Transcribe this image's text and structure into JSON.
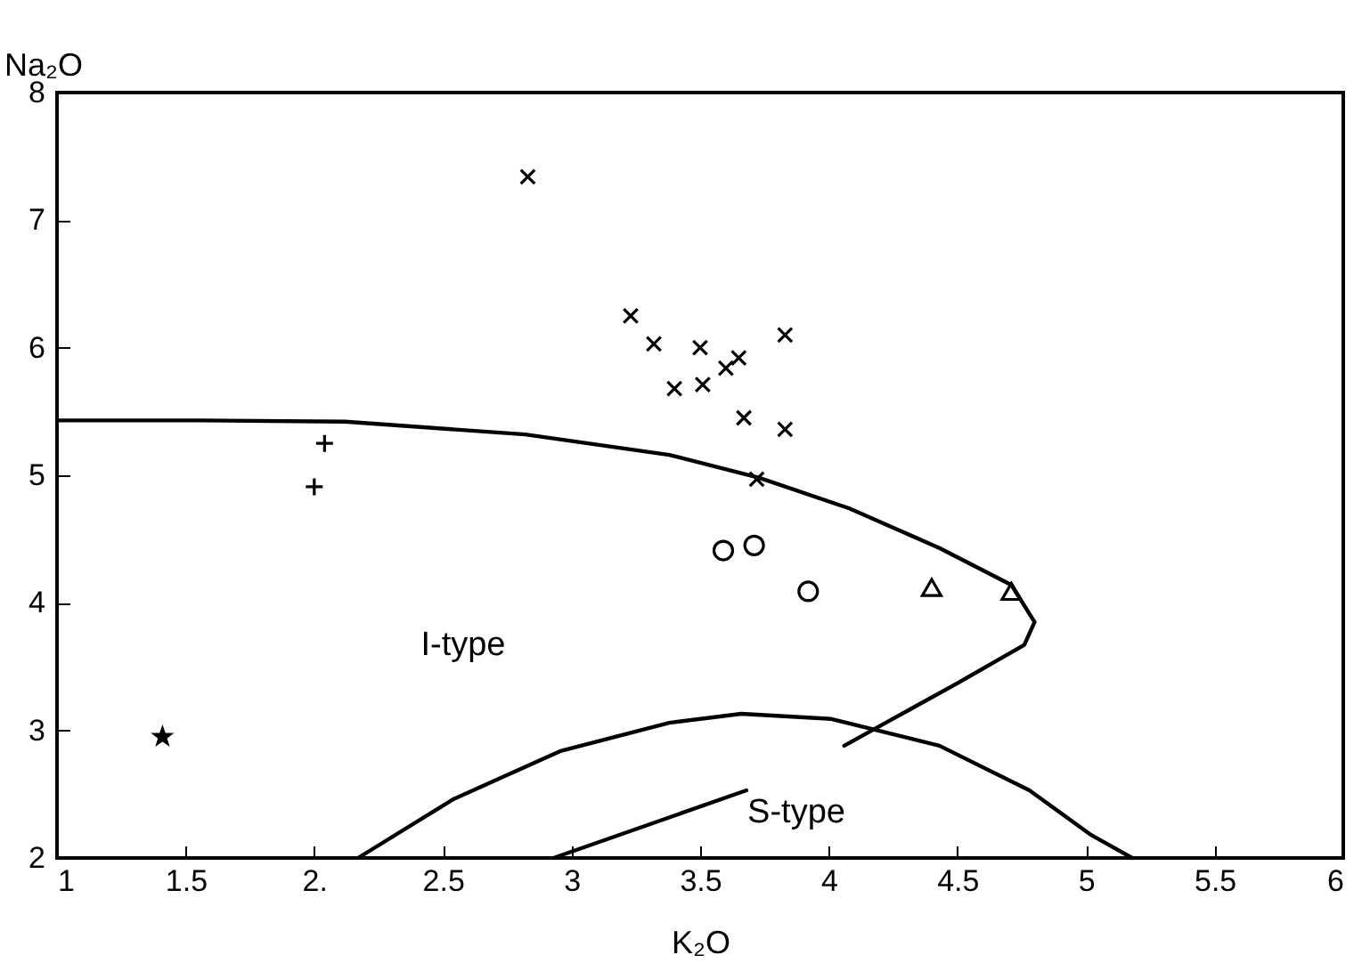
{
  "chart_data": {
    "type": "scatter",
    "xlabel": "K₂O",
    "ylabel": "Na₂O",
    "xlim": [
      1,
      6
    ],
    "xticks": [
      1,
      1.5,
      {
        "value": 2,
        "label": "2."
      },
      2.5,
      3,
      3.5,
      4,
      4.5,
      5,
      5.5,
      6
    ],
    "ylim": [
      2,
      8
    ],
    "yticks": [
      2,
      3,
      4,
      5,
      6,
      7,
      8
    ],
    "grid": false,
    "annotations": [
      "I-type",
      "S-type"
    ],
    "series": [
      {
        "type": "line",
        "color": "#000000",
        "marker": "none",
        "x": [
          1.0,
          1.56,
          2.12,
          2.82,
          3.38,
          3.73,
          4.08,
          4.43,
          4.71,
          4.8,
          4.76,
          4.5,
          4.06
        ],
        "values": [
          5.43,
          5.43,
          5.42,
          5.32,
          5.16,
          4.98,
          4.74,
          4.43,
          4.14,
          3.85,
          3.67,
          3.37,
          2.88
        ]
      },
      {
        "type": "line",
        "color": "#000000",
        "marker": "none",
        "x": [
          3.68,
          2.93
        ],
        "values": [
          2.53,
          2.0
        ]
      },
      {
        "type": "line",
        "color": "#000000",
        "marker": "none",
        "x": [
          2.17,
          2.54,
          2.96,
          3.38,
          3.66,
          4.01,
          4.43,
          4.78,
          5.02,
          5.18
        ],
        "values": [
          2.0,
          2.46,
          2.84,
          3.06,
          3.13,
          3.09,
          2.88,
          2.53,
          2.18,
          2.0
        ]
      },
      {
        "type": "scatter",
        "color": "#000000",
        "marker": "x",
        "x": [
          2.83,
          3.23,
          3.32,
          3.5,
          3.65,
          3.6,
          3.83,
          3.4,
          3.51,
          3.67,
          3.83,
          3.72
        ],
        "values": [
          7.34,
          6.25,
          6.03,
          6.0,
          5.92,
          5.84,
          6.1,
          5.68,
          5.71,
          5.45,
          5.36,
          4.97
        ]
      },
      {
        "type": "scatter",
        "color": "#000000",
        "marker": "cross",
        "x": [
          2.04,
          2.0
        ],
        "values": [
          5.25,
          4.91
        ]
      },
      {
        "type": "scatter",
        "color": "#000000",
        "marker": "star",
        "x": [
          1.41
        ],
        "values": [
          2.95
        ]
      },
      {
        "type": "scatter",
        "color": "#000000",
        "marker": "circle",
        "x": [
          3.59,
          3.71,
          3.92
        ],
        "values": [
          4.41,
          4.45,
          4.09
        ]
      },
      {
        "type": "scatter",
        "color": "#000000",
        "marker": "triangle",
        "x": [
          4.4,
          4.71
        ],
        "values": [
          4.12,
          4.09
        ]
      }
    ]
  }
}
